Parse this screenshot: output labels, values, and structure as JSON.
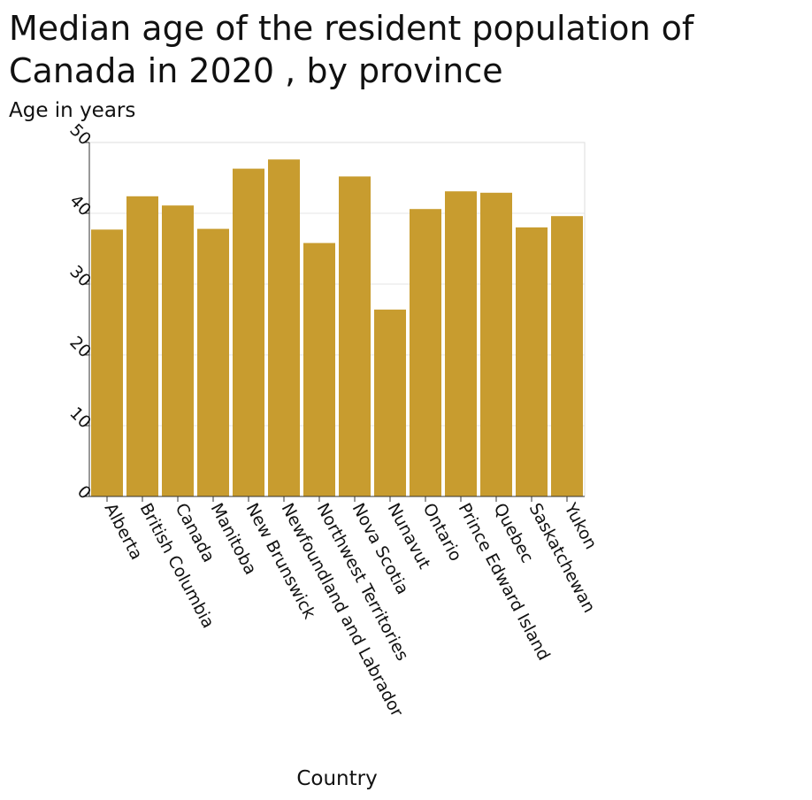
{
  "chart_data": {
    "type": "bar",
    "title": "Median age of the resident population of Canada in 2020 , by province",
    "ylabel": "Age in years",
    "xlabel": "Country",
    "categories": [
      "Alberta",
      "British Columbia",
      "Canada",
      "Manitoba",
      "New Brunswick",
      "Newfoundland and Labrador",
      "Northwest Territories",
      "Nova Scotia",
      "Nunavut",
      "Ontario",
      "Prince Edward Island",
      "Quebec",
      "Saskatchewan",
      "Yukon"
    ],
    "values": [
      37.7,
      42.4,
      41.1,
      37.8,
      46.3,
      47.6,
      35.8,
      45.2,
      26.4,
      40.6,
      43.1,
      42.9,
      38.0,
      39.6
    ],
    "ylim": [
      0,
      50
    ],
    "yticks": [
      0,
      10,
      20,
      30,
      40,
      50
    ],
    "grid": true,
    "legend": "none",
    "bar_color": "#c89c2f"
  }
}
